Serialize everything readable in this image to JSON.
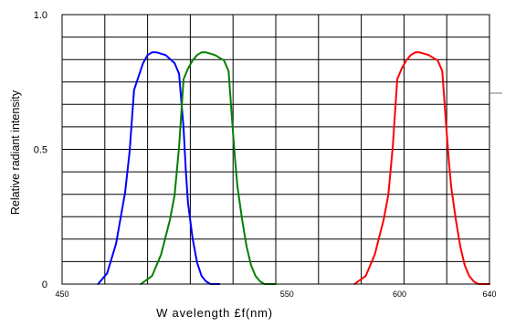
{
  "chart_data": {
    "type": "line",
    "title": "",
    "xlabel": "W avelength £f(nm)",
    "ylabel": "Relative radiant intensity",
    "xlim": [
      450,
      640
    ],
    "ylim": [
      0,
      1.0
    ],
    "x_ticks": [
      {
        "value": 450,
        "label": "450"
      },
      {
        "value": 550,
        "label": "550"
      },
      {
        "value": 600,
        "label": "600"
      },
      {
        "value": 640,
        "label": "640"
      }
    ],
    "y_ticks": [
      {
        "value": 0,
        "label": "0"
      },
      {
        "value": 0.5,
        "label": "0.5"
      },
      {
        "value": 1.0,
        "label": "1.0"
      }
    ],
    "grid": true,
    "legend": "none",
    "series": [
      {
        "color": "#0000ff",
        "x": [
          466,
          470,
          474,
          478,
          480,
          482,
          484,
          486,
          488,
          490,
          492,
          496,
          500,
          502,
          504,
          505,
          506,
          508,
          510,
          512,
          514,
          516,
          518,
          520
        ],
        "y": [
          0.0,
          0.04,
          0.15,
          0.34,
          0.49,
          0.72,
          0.77,
          0.82,
          0.85,
          0.86,
          0.86,
          0.85,
          0.82,
          0.78,
          0.58,
          0.42,
          0.3,
          0.17,
          0.08,
          0.03,
          0.01,
          0.0,
          0.0,
          0.0
        ]
      },
      {
        "color": "#008000",
        "x": [
          485,
          490,
          494,
          498,
          500,
          502,
          504,
          506,
          508,
          510,
          512,
          514,
          518,
          522,
          524,
          526,
          527,
          528,
          530,
          532,
          534,
          536,
          538,
          540,
          542,
          545
        ],
        "y": [
          0.0,
          0.03,
          0.11,
          0.24,
          0.33,
          0.51,
          0.76,
          0.8,
          0.83,
          0.85,
          0.86,
          0.86,
          0.85,
          0.83,
          0.79,
          0.56,
          0.45,
          0.36,
          0.24,
          0.14,
          0.07,
          0.03,
          0.01,
          0.0,
          0.0,
          0.0
        ]
      },
      {
        "color": "#ff0000",
        "x": [
          580,
          585,
          589,
          593,
          595,
          597,
          599,
          601,
          603,
          605,
          607,
          609,
          613,
          617,
          619,
          621,
          622,
          623,
          625,
          627,
          629,
          631,
          633,
          635,
          637,
          640
        ],
        "y": [
          0.0,
          0.03,
          0.11,
          0.24,
          0.33,
          0.51,
          0.76,
          0.8,
          0.83,
          0.85,
          0.86,
          0.86,
          0.85,
          0.83,
          0.79,
          0.56,
          0.45,
          0.36,
          0.24,
          0.14,
          0.07,
          0.03,
          0.01,
          0.0,
          0.0,
          0.0
        ]
      }
    ]
  }
}
